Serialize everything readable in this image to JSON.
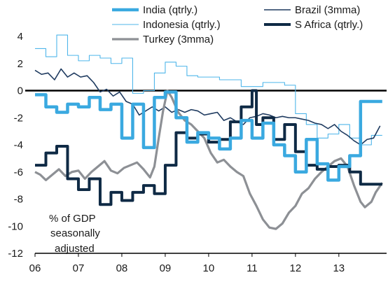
{
  "chart_data": {
    "type": "line",
    "annotation": [
      "% of GDP",
      "seasonally",
      "adjusted"
    ],
    "ylim": [
      -12,
      4
    ],
    "yticks": [
      4,
      2,
      0,
      -2,
      -4,
      -6,
      -8,
      -10,
      -12
    ],
    "xlim": [
      2006,
      2014.1
    ],
    "xticks": [
      2006,
      2007,
      2008,
      2009,
      2010,
      2011,
      2012,
      2013
    ],
    "xtick_labels": [
      "06",
      "07",
      "08",
      "09",
      "10",
      "11",
      "12",
      "13"
    ],
    "legend_position": "top",
    "series": [
      {
        "name": "India (qtrly.)",
        "color": "#3aa9e0",
        "width": 4.5,
        "step": true,
        "points": [
          [
            2006.0,
            -0.3
          ],
          [
            2006.25,
            -1.2
          ],
          [
            2006.5,
            -1.6
          ],
          [
            2006.75,
            -1.0
          ],
          [
            2007.0,
            -1.2
          ],
          [
            2007.25,
            -0.5
          ],
          [
            2007.5,
            -1.4
          ],
          [
            2007.75,
            -1.0
          ],
          [
            2008.0,
            -3.5
          ],
          [
            2008.25,
            -1.0
          ],
          [
            2008.5,
            -4.2
          ],
          [
            2008.75,
            -0.5
          ],
          [
            2009.0,
            -0.1
          ],
          [
            2009.25,
            -2.0
          ],
          [
            2009.5,
            -3.8
          ],
          [
            2009.75,
            -3.1
          ],
          [
            2010.0,
            -3.5
          ],
          [
            2010.25,
            -4.3
          ],
          [
            2010.5,
            -3.5
          ],
          [
            2010.75,
            -2.2
          ],
          [
            2011.0,
            -3.5
          ],
          [
            2011.25,
            -2.4
          ],
          [
            2011.5,
            -4.0
          ],
          [
            2011.75,
            -4.8
          ],
          [
            2012.0,
            -6.0
          ],
          [
            2012.25,
            -3.6
          ],
          [
            2012.5,
            -5.4
          ],
          [
            2012.75,
            -6.6
          ],
          [
            2013.0,
            -5.6
          ],
          [
            2013.25,
            -4.8
          ],
          [
            2013.5,
            -0.8
          ],
          [
            2013.75,
            -0.8
          ]
        ]
      },
      {
        "name": "Brazil (3mma)",
        "color": "#1e3a5f",
        "width": 1.6,
        "step": false,
        "points": [
          [
            2006.0,
            1.5
          ],
          [
            2006.15,
            1.2
          ],
          [
            2006.3,
            1.3
          ],
          [
            2006.45,
            0.8
          ],
          [
            2006.6,
            1.6
          ],
          [
            2006.75,
            1.0
          ],
          [
            2006.9,
            1.3
          ],
          [
            2007.05,
            1.0
          ],
          [
            2007.2,
            1.1
          ],
          [
            2007.35,
            0.6
          ],
          [
            2007.5,
            -0.1
          ],
          [
            2007.65,
            0.1
          ],
          [
            2007.8,
            -0.4
          ],
          [
            2007.95,
            -0.1
          ],
          [
            2008.1,
            -0.8
          ],
          [
            2008.25,
            -1.0
          ],
          [
            2008.4,
            -1.8
          ],
          [
            2008.55,
            -1.5
          ],
          [
            2008.7,
            -1.2
          ],
          [
            2008.85,
            -1.5
          ],
          [
            2009.0,
            -1.2
          ],
          [
            2009.15,
            -1.6
          ],
          [
            2009.3,
            -1.4
          ],
          [
            2009.45,
            -1.6
          ],
          [
            2009.6,
            -1.4
          ],
          [
            2009.75,
            -1.5
          ],
          [
            2009.9,
            -1.8
          ],
          [
            2010.05,
            -1.7
          ],
          [
            2010.2,
            -1.6
          ],
          [
            2010.35,
            -2.2
          ],
          [
            2010.5,
            -2.0
          ],
          [
            2010.65,
            -2.3
          ],
          [
            2010.8,
            -2.5
          ],
          [
            2010.95,
            -2.0
          ],
          [
            2011.1,
            -1.9
          ],
          [
            2011.25,
            -1.7
          ],
          [
            2011.4,
            -1.8
          ],
          [
            2011.55,
            -2.0
          ],
          [
            2011.7,
            -1.9
          ],
          [
            2011.85,
            -2.0
          ],
          [
            2012.0,
            -2.0
          ],
          [
            2012.15,
            -2.1
          ],
          [
            2012.3,
            -2.2
          ],
          [
            2012.45,
            -2.4
          ],
          [
            2012.6,
            -2.5
          ],
          [
            2012.75,
            -2.8
          ],
          [
            2012.9,
            -2.5
          ],
          [
            2013.05,
            -3.0
          ],
          [
            2013.2,
            -3.3
          ],
          [
            2013.35,
            -3.7
          ],
          [
            2013.5,
            -4.0
          ],
          [
            2013.65,
            -3.6
          ],
          [
            2013.8,
            -3.5
          ],
          [
            2013.95,
            -2.6
          ]
        ]
      },
      {
        "name": "Indonesia (qtrly.)",
        "color": "#4fb6ea",
        "width": 1.1,
        "step": true,
        "points": [
          [
            2006.0,
            3.1
          ],
          [
            2006.25,
            2.5
          ],
          [
            2006.5,
            4.1
          ],
          [
            2006.75,
            2.6
          ],
          [
            2007.0,
            2.2
          ],
          [
            2007.25,
            2.6
          ],
          [
            2007.5,
            2.4
          ],
          [
            2007.75,
            2.0
          ],
          [
            2008.0,
            2.4
          ],
          [
            2008.25,
            -0.2
          ],
          [
            2008.5,
            0.0
          ],
          [
            2008.75,
            1.3
          ],
          [
            2009.0,
            2.1
          ],
          [
            2009.25,
            1.8
          ],
          [
            2009.5,
            1.1
          ],
          [
            2009.75,
            1.0
          ],
          [
            2010.0,
            1.0
          ],
          [
            2010.25,
            0.8
          ],
          [
            2010.5,
            0.8
          ],
          [
            2010.75,
            0.3
          ],
          [
            2011.0,
            0.3
          ],
          [
            2011.25,
            0.6
          ],
          [
            2011.5,
            0.6
          ],
          [
            2011.75,
            0.4
          ],
          [
            2012.0,
            -1.7
          ],
          [
            2012.25,
            -2.5
          ],
          [
            2012.5,
            -3.5
          ],
          [
            2012.75,
            -3.2
          ],
          [
            2013.0,
            -2.5
          ],
          [
            2013.25,
            -3.5
          ],
          [
            2013.5,
            -4.0
          ],
          [
            2013.75,
            -3.3
          ]
        ]
      },
      {
        "name": "S Africa (qtrly.)",
        "color": "#0f2a45",
        "width": 4.0,
        "step": true,
        "points": [
          [
            2006.0,
            -5.5
          ],
          [
            2006.25,
            -4.6
          ],
          [
            2006.5,
            -4.1
          ],
          [
            2006.75,
            -6.5
          ],
          [
            2007.0,
            -7.3
          ],
          [
            2007.25,
            -6.5
          ],
          [
            2007.5,
            -8.4
          ],
          [
            2007.75,
            -7.5
          ],
          [
            2008.0,
            -8.1
          ],
          [
            2008.25,
            -7.5
          ],
          [
            2008.5,
            -7.0
          ],
          [
            2008.75,
            -7.6
          ],
          [
            2009.0,
            -5.5
          ],
          [
            2009.25,
            -3.1
          ],
          [
            2009.5,
            -3.5
          ],
          [
            2009.75,
            -3.2
          ],
          [
            2010.0,
            -3.8
          ],
          [
            2010.25,
            -3.6
          ],
          [
            2010.5,
            -2.3
          ],
          [
            2010.75,
            -1.2
          ],
          [
            2011.0,
            0.0
          ],
          [
            2011.1,
            -2.5
          ],
          [
            2011.25,
            -2.0
          ],
          [
            2011.5,
            -3.6
          ],
          [
            2011.75,
            -2.5
          ],
          [
            2012.0,
            -4.5
          ],
          [
            2012.25,
            -5.5
          ],
          [
            2012.5,
            -5.8
          ],
          [
            2012.75,
            -5.6
          ],
          [
            2013.0,
            -5.5
          ],
          [
            2013.25,
            -6.0
          ],
          [
            2013.5,
            -6.9
          ],
          [
            2013.75,
            -6.9
          ]
        ]
      },
      {
        "name": "Turkey (3mma)",
        "color": "#8d9095",
        "width": 3.2,
        "step": false,
        "points": [
          [
            2006.0,
            -6.0
          ],
          [
            2006.12,
            -6.2
          ],
          [
            2006.25,
            -6.6
          ],
          [
            2006.4,
            -6.2
          ],
          [
            2006.55,
            -5.8
          ],
          [
            2006.7,
            -6.3
          ],
          [
            2006.85,
            -6.0
          ],
          [
            2007.0,
            -5.9
          ],
          [
            2007.15,
            -6.5
          ],
          [
            2007.3,
            -6.0
          ],
          [
            2007.45,
            -5.6
          ],
          [
            2007.6,
            -5.2
          ],
          [
            2007.75,
            -5.9
          ],
          [
            2007.9,
            -6.1
          ],
          [
            2008.05,
            -5.7
          ],
          [
            2008.2,
            -5.5
          ],
          [
            2008.35,
            -5.3
          ],
          [
            2008.5,
            -5.8
          ],
          [
            2008.65,
            -6.4
          ],
          [
            2008.75,
            -5.6
          ],
          [
            2008.85,
            -3.5
          ],
          [
            2008.95,
            -1.5
          ],
          [
            2009.05,
            0.0
          ],
          [
            2009.15,
            -0.5
          ],
          [
            2009.3,
            -1.6
          ],
          [
            2009.45,
            -2.2
          ],
          [
            2009.6,
            -2.5
          ],
          [
            2009.75,
            -3.0
          ],
          [
            2009.9,
            -3.5
          ],
          [
            2010.05,
            -4.6
          ],
          [
            2010.2,
            -5.3
          ],
          [
            2010.35,
            -5.1
          ],
          [
            2010.5,
            -5.6
          ],
          [
            2010.65,
            -6.0
          ],
          [
            2010.8,
            -6.3
          ],
          [
            2010.95,
            -7.6
          ],
          [
            2011.1,
            -8.5
          ],
          [
            2011.25,
            -9.5
          ],
          [
            2011.4,
            -10.1
          ],
          [
            2011.55,
            -10.2
          ],
          [
            2011.7,
            -9.8
          ],
          [
            2011.85,
            -9.0
          ],
          [
            2012.0,
            -8.5
          ],
          [
            2012.15,
            -7.6
          ],
          [
            2012.3,
            -7.2
          ],
          [
            2012.45,
            -6.5
          ],
          [
            2012.6,
            -6.0
          ],
          [
            2012.75,
            -5.6
          ],
          [
            2012.9,
            -5.2
          ],
          [
            2013.05,
            -5.0
          ],
          [
            2013.2,
            -5.6
          ],
          [
            2013.35,
            -7.0
          ],
          [
            2013.5,
            -8.2
          ],
          [
            2013.6,
            -8.6
          ],
          [
            2013.75,
            -8.2
          ],
          [
            2013.85,
            -7.5
          ],
          [
            2014.0,
            -6.8
          ]
        ]
      }
    ]
  }
}
